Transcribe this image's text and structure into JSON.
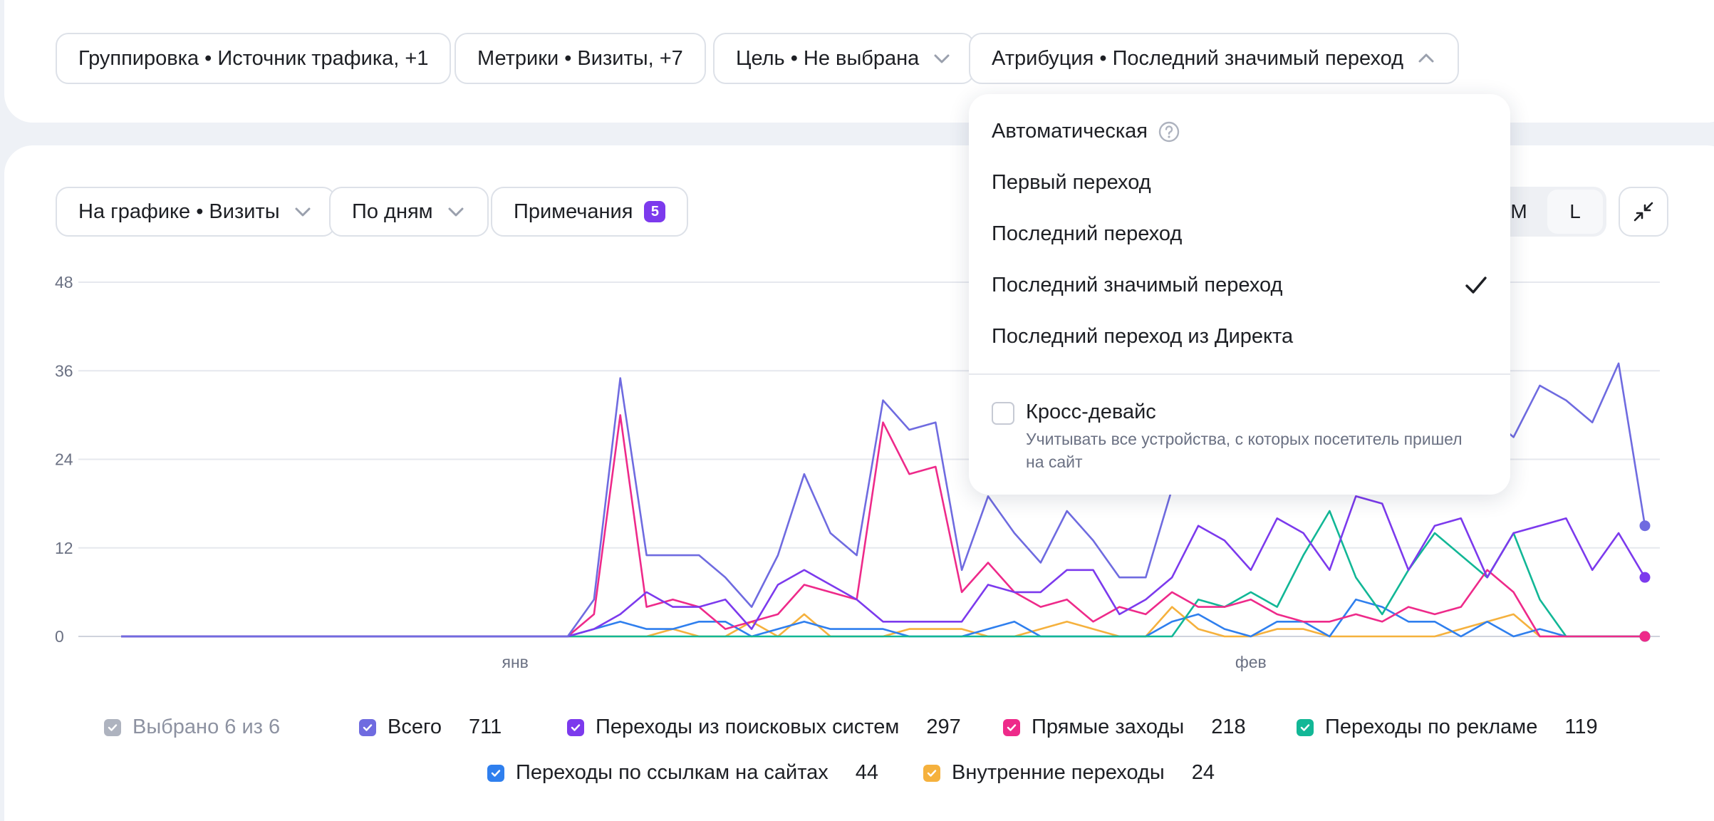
{
  "filters": {
    "grouping": "Группировка • Источник трафика, +1",
    "metrics": "Метрики • Визиты, +7",
    "goal": "Цель • Не выбрана",
    "attribution": "Атрибуция • Последний значимый переход"
  },
  "chart_controls": {
    "on_chart": "На графике • Визиты",
    "period": "По дням",
    "notes_label": "Примечания",
    "notes_count": "5",
    "size_m": "M",
    "size_l": "L"
  },
  "attribution_menu": {
    "options": [
      "Автоматическая",
      "Первый переход",
      "Последний переход",
      "Последний значимый переход",
      "Последний переход из Директа"
    ],
    "selected": "Последний значимый переход",
    "cross_device_label": "Кросс-девайс",
    "cross_device_hint": "Учитывать все устройства, с которых посетитель пришел на сайт"
  },
  "legend": {
    "selected_label": "Выбрано 6 из 6",
    "items": [
      {
        "name": "Всего",
        "value": "711",
        "color": "#6f6be0"
      },
      {
        "name": "Переходы из поисковых систем",
        "value": "297",
        "color": "#7c3aed"
      },
      {
        "name": "Прямые заходы",
        "value": "218",
        "color": "#ee2a8a"
      },
      {
        "name": "Переходы по рекламе",
        "value": "119",
        "color": "#12b796"
      },
      {
        "name": "Переходы по ссылкам на сайтах",
        "value": "44",
        "color": "#2f7fee"
      },
      {
        "name": "Внутренние переходы",
        "value": "24",
        "color": "#f5b13d"
      }
    ]
  },
  "chart_data": {
    "type": "line",
    "y_ticks": [
      "0",
      "12",
      "24",
      "36",
      "48"
    ],
    "ylim": [
      0,
      48
    ],
    "x_labels": [
      {
        "label": "янв",
        "index": 15
      },
      {
        "label": "фев",
        "index": 43
      }
    ],
    "series": [
      {
        "name": "Всего",
        "color": "#6f6be0",
        "values": [
          0,
          0,
          0,
          0,
          0,
          0,
          0,
          0,
          0,
          0,
          0,
          0,
          0,
          0,
          0,
          0,
          0,
          0,
          5,
          35,
          11,
          11,
          11,
          8,
          4,
          11,
          22,
          14,
          11,
          32,
          28,
          29,
          9,
          19,
          14,
          10,
          17,
          13,
          8,
          8,
          20,
          31,
          30,
          26,
          25,
          24,
          21,
          20,
          22,
          30,
          27,
          28,
          30,
          27,
          34,
          32,
          29,
          37,
          15
        ]
      },
      {
        "name": "Переходы из поисковых систем",
        "color": "#7c3aed",
        "values": [
          0,
          0,
          0,
          0,
          0,
          0,
          0,
          0,
          0,
          0,
          0,
          0,
          0,
          0,
          0,
          0,
          0,
          0,
          1,
          3,
          6,
          4,
          4,
          5,
          1,
          7,
          9,
          7,
          5,
          2,
          2,
          2,
          2,
          7,
          6,
          6,
          9,
          9,
          3,
          5,
          8,
          15,
          13,
          9,
          16,
          14,
          9,
          19,
          18,
          9,
          15,
          16,
          8,
          14,
          15,
          16,
          9,
          14,
          8
        ]
      },
      {
        "name": "Прямые заходы",
        "color": "#ee2a8a",
        "values": [
          0,
          0,
          0,
          0,
          0,
          0,
          0,
          0,
          0,
          0,
          0,
          0,
          0,
          0,
          0,
          0,
          0,
          0,
          3,
          30,
          4,
          5,
          4,
          1,
          2,
          3,
          7,
          6,
          5,
          29,
          22,
          23,
          6,
          10,
          6,
          4,
          5,
          2,
          4,
          3,
          6,
          4,
          4,
          5,
          3,
          2,
          2,
          3,
          2,
          4,
          3,
          4,
          9,
          6,
          0,
          0,
          0,
          0,
          0
        ]
      },
      {
        "name": "Переходы по рекламе",
        "color": "#12b796",
        "values": [
          0,
          0,
          0,
          0,
          0,
          0,
          0,
          0,
          0,
          0,
          0,
          0,
          0,
          0,
          0,
          0,
          0,
          0,
          0,
          0,
          0,
          0,
          0,
          0,
          0,
          0,
          0,
          0,
          0,
          0,
          0,
          0,
          0,
          0,
          0,
          0,
          0,
          0,
          0,
          0,
          0,
          5,
          4,
          6,
          4,
          11,
          17,
          8,
          3,
          9,
          14,
          11,
          8,
          14,
          5,
          0,
          0,
          0,
          0
        ]
      },
      {
        "name": "Переходы по ссылкам на сайтах",
        "color": "#2f7fee",
        "values": [
          0,
          0,
          0,
          0,
          0,
          0,
          0,
          0,
          0,
          0,
          0,
          0,
          0,
          0,
          0,
          0,
          0,
          0,
          1,
          2,
          1,
          1,
          2,
          2,
          0,
          1,
          2,
          1,
          1,
          1,
          0,
          0,
          0,
          1,
          2,
          0,
          0,
          0,
          0,
          0,
          2,
          3,
          1,
          0,
          2,
          2,
          0,
          5,
          4,
          2,
          2,
          0,
          2,
          0,
          1,
          0,
          0,
          0,
          0
        ]
      },
      {
        "name": "Внутренние переходы",
        "color": "#f5b13d",
        "values": [
          0,
          0,
          0,
          0,
          0,
          0,
          0,
          0,
          0,
          0,
          0,
          0,
          0,
          0,
          0,
          0,
          0,
          0,
          0,
          0,
          0,
          1,
          0,
          0,
          2,
          0,
          3,
          0,
          0,
          0,
          1,
          1,
          1,
          0,
          0,
          1,
          2,
          1,
          0,
          0,
          4,
          1,
          0,
          0,
          1,
          1,
          0,
          0,
          0,
          0,
          0,
          1,
          2,
          3,
          0,
          0,
          0,
          0,
          0
        ]
      }
    ]
  }
}
